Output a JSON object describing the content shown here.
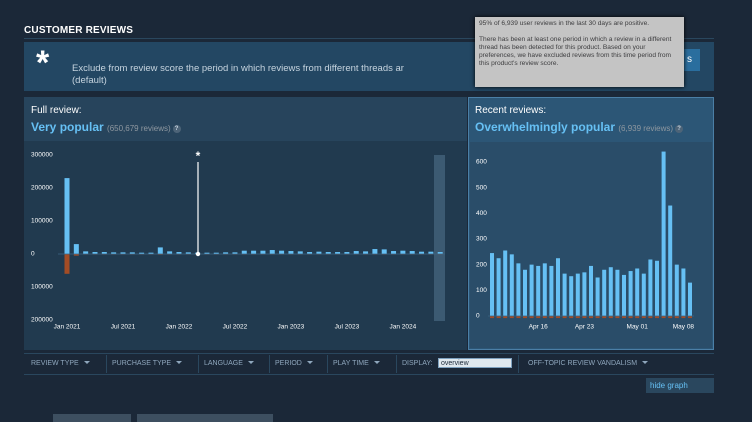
{
  "header": {
    "title": "CUSTOMER REVIEWS"
  },
  "banner": {
    "icon": "*",
    "text": "Exclude from review score the period in which reviews from different threads ar",
    "default": "(default)",
    "button": "s"
  },
  "tooltip": {
    "summary": "95% of 6,939 user reviews in the last 30 days are positive.",
    "detail": "There has been at least one period in which a review in a different thread has been detected for this product. Based on your preferences, we have excluded reviews from this time period from this product's review score."
  },
  "panels": [
    {
      "label": "Full review:",
      "rating": "Very popular",
      "count": "(650,679 reviews)",
      "help": "?"
    },
    {
      "label": "Recent reviews:",
      "rating": "Overwhelmingly popular",
      "count": "(6,939 reviews)",
      "help": "?"
    }
  ],
  "chart_data": [
    {
      "type": "bar",
      "annotation": "*",
      "categories": [
        "Jan 2021",
        null,
        null,
        null,
        null,
        null,
        "Jul 2021",
        null,
        null,
        null,
        null,
        null,
        "Jan 2022",
        null,
        null,
        null,
        null,
        null,
        "Jul 2022",
        null,
        null,
        null,
        null,
        null,
        "Jan 2023",
        null,
        null,
        null,
        null,
        null,
        "Jul 2023",
        null,
        null,
        null,
        null,
        null,
        "Jan 2024",
        null,
        null,
        null,
        null
      ],
      "series": [
        {
          "color": "#66c0f4",
          "values": [
            230000,
            30000,
            8000,
            6000,
            6000,
            5000,
            5000,
            5000,
            4000,
            4000,
            20000,
            8000,
            6000,
            5000,
            4000,
            4000,
            4000,
            5000,
            5000,
            10000,
            10000,
            10000,
            12000,
            10000,
            9000,
            8000,
            6000,
            7000,
            6000,
            6000,
            6000,
            9000,
            8000,
            15000,
            14000,
            9000,
            10000,
            9000,
            7000,
            7000,
            6000
          ]
        },
        {
          "color": "#a34c25",
          "values": [
            -60000,
            -5000,
            -1000,
            -1000,
            -1000,
            -1000,
            -1000,
            -1000,
            -1000,
            -1000,
            -2000,
            -1000,
            -1000,
            -1000,
            -1000,
            -1000,
            -1000,
            -1000,
            -1000,
            -1000,
            -1000,
            -1000,
            -1000,
            -1000,
            -1000,
            -1000,
            -1000,
            -1000,
            -1000,
            -1000,
            -1000,
            -1000,
            -1000,
            -1000,
            -1000,
            -1000,
            -1000,
            -1000,
            -1000,
            -1000,
            -1000
          ]
        }
      ],
      "ylim": [
        -200000,
        300000
      ],
      "yticks": [
        300000,
        200000,
        100000,
        0,
        {
          "value": -100000,
          "label": "100000"
        },
        {
          "value": -200000,
          "label": "200000"
        }
      ],
      "grid": false
    },
    {
      "type": "bar",
      "categories": [
        null,
        null,
        null,
        null,
        null,
        null,
        null,
        "Apr 16",
        null,
        null,
        null,
        null,
        null,
        null,
        "Apr 23",
        null,
        null,
        null,
        null,
        null,
        null,
        null,
        "May 01",
        null,
        null,
        null,
        null,
        null,
        null,
        "May 08",
        null
      ],
      "series": [
        {
          "color": "#66c0f4",
          "values": [
            245,
            225,
            255,
            240,
            205,
            180,
            200,
            195,
            205,
            195,
            225,
            165,
            155,
            165,
            170,
            195,
            150,
            180,
            190,
            180,
            160,
            175,
            185,
            165,
            220,
            215,
            640,
            430,
            200,
            185,
            130
          ]
        },
        {
          "color": "#a34c25",
          "values": [
            -8,
            -8,
            -8,
            -8,
            -8,
            -8,
            -8,
            -8,
            -8,
            -8,
            -8,
            -8,
            -8,
            -8,
            -8,
            -8,
            -8,
            -8,
            -8,
            -8,
            -8,
            -8,
            -8,
            -8,
            -8,
            -8,
            -8,
            -8,
            -8,
            -8,
            -8
          ]
        }
      ],
      "ylim": [
        -10,
        650
      ],
      "yticks": [
        0,
        100,
        200,
        300,
        400,
        500,
        600
      ],
      "grid": false
    }
  ],
  "filters": {
    "items": [
      "REVIEW TYPE",
      "PURCHASE TYPE",
      "LANGUAGE",
      "PERIOD",
      "PLAY TIME"
    ],
    "display_label": "DISPLAY:",
    "display_value": "overview",
    "vandalism": "OFF-TOPIC REVIEW VANDALISM"
  },
  "hide_graph": "hide graph"
}
